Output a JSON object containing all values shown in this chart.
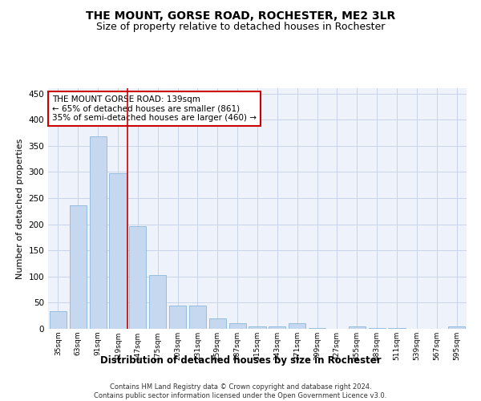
{
  "title": "THE MOUNT, GORSE ROAD, ROCHESTER, ME2 3LR",
  "subtitle": "Size of property relative to detached houses in Rochester",
  "xlabel": "Distribution of detached houses by size in Rochester",
  "ylabel": "Number of detached properties",
  "categories": [
    "35sqm",
    "63sqm",
    "91sqm",
    "119sqm",
    "147sqm",
    "175sqm",
    "203sqm",
    "231sqm",
    "259sqm",
    "287sqm",
    "315sqm",
    "343sqm",
    "371sqm",
    "399sqm",
    "427sqm",
    "455sqm",
    "483sqm",
    "511sqm",
    "539sqm",
    "567sqm",
    "595sqm"
  ],
  "values": [
    34,
    236,
    368,
    297,
    197,
    103,
    45,
    44,
    20,
    11,
    5,
    5,
    10,
    2,
    0,
    4,
    1,
    1,
    0,
    0,
    4
  ],
  "bar_color": "#c5d8f0",
  "bar_edge_color": "#7bafd4",
  "grid_color": "#c8d4e8",
  "bg_color": "#eef2fa",
  "annotation_text_line1": "THE MOUNT GORSE ROAD: 139sqm",
  "annotation_text_line2": "← 65% of detached houses are smaller (861)",
  "annotation_text_line3": "35% of semi-detached houses are larger (460) →",
  "annotation_box_color": "#cc0000",
  "vline_x": 3.5,
  "footer_line1": "Contains HM Land Registry data © Crown copyright and database right 2024.",
  "footer_line2": "Contains public sector information licensed under the Open Government Licence v3.0.",
  "ylim": [
    0,
    460
  ],
  "yticks": [
    0,
    50,
    100,
    150,
    200,
    250,
    300,
    350,
    400,
    450
  ]
}
